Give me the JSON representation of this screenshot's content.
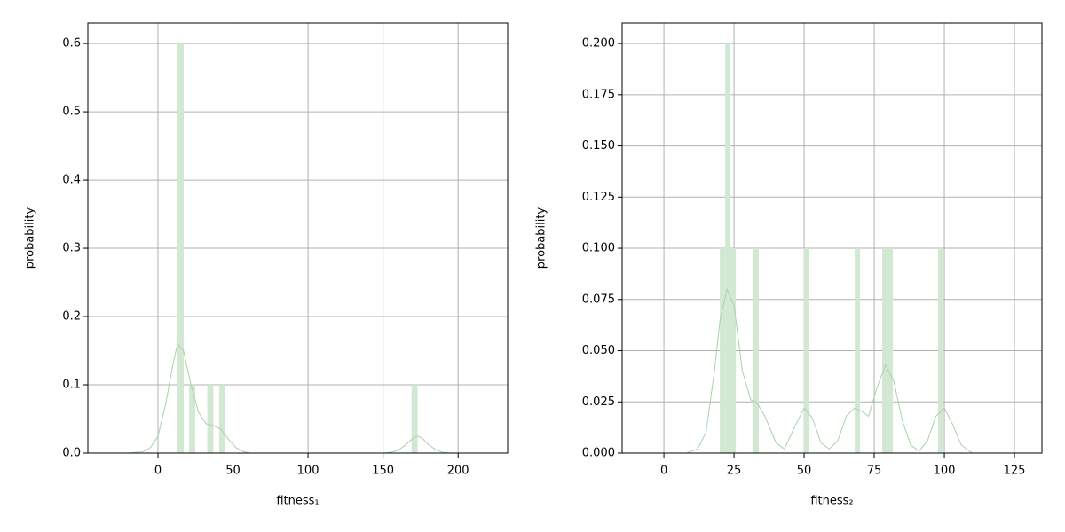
{
  "chart_data": [
    {
      "type": "histogram",
      "xlabel": "fitness₁",
      "ylabel": "probability",
      "xlim": [
        -46.7,
        233
      ],
      "ylim": [
        0,
        0.63
      ],
      "xticks": [
        0,
        50,
        100,
        150,
        200
      ],
      "yticks": [
        {
          "value": 0,
          "label": "0.0"
        },
        0.1,
        0.2,
        0.3,
        0.4,
        0.5,
        0.6
      ],
      "grid": true,
      "bars": {
        "x": [
          15.1,
          22.8,
          34.9,
          42.9,
          171
        ],
        "values": [
          0.6,
          0.1,
          0.1,
          0.1,
          0.1
        ],
        "width": 4.1,
        "color": "#d2e8d2"
      },
      "kde": {
        "x": [
          -20,
          -10,
          -5,
          0,
          5,
          10,
          13,
          17,
          22,
          27,
          32,
          37,
          42,
          47,
          52,
          57,
          62,
          70,
          90,
          120,
          150,
          155,
          160,
          165,
          170,
          173,
          176,
          180,
          185,
          190,
          195,
          200
        ],
        "values": [
          0,
          0.002,
          0.008,
          0.025,
          0.07,
          0.13,
          0.16,
          0.15,
          0.1,
          0.06,
          0.043,
          0.04,
          0.035,
          0.02,
          0.008,
          0.002,
          0,
          0,
          0,
          0,
          0,
          0.001,
          0.004,
          0.012,
          0.022,
          0.025,
          0.022,
          0.013,
          0.005,
          0.001,
          0,
          0
        ],
        "color": "#a9d2a9"
      }
    },
    {
      "type": "histogram",
      "xlabel": "fitness₂",
      "ylabel": "probability",
      "xlim": [
        -14.9,
        134.8
      ],
      "ylim": [
        0,
        0.21
      ],
      "xticks": [
        0,
        25,
        50,
        75,
        100,
        125
      ],
      "yticks": [
        {
          "value": 0,
          "label": "0.000"
        },
        {
          "value": 0.025,
          "label": "0.025"
        },
        {
          "value": 0.05,
          "label": "0.050"
        },
        {
          "value": 0.075,
          "label": "0.075"
        },
        {
          "value": 0.1,
          "label": "0.100"
        },
        {
          "value": 0.125,
          "label": "0.125"
        },
        {
          "value": 0.15,
          "label": "0.150"
        },
        {
          "value": 0.175,
          "label": "0.175"
        },
        {
          "value": 0.2,
          "label": "0.200"
        }
      ],
      "grid": true,
      "bars": {
        "x": [
          20.9,
          22.8,
          24.7,
          32.9,
          50.8,
          69.0,
          78.8,
          80.7,
          98.7
        ],
        "values": [
          0.1,
          0.2,
          0.1,
          0.1,
          0.1,
          0.1,
          0.1,
          0.1,
          0.1
        ],
        "width": 1.9,
        "color": "#d2e8d2"
      },
      "kde": {
        "x": [
          8,
          12,
          15,
          18,
          20,
          22.5,
          25,
          28,
          31,
          33,
          36,
          40,
          43,
          47,
          50,
          53,
          56,
          59,
          62,
          65,
          68,
          71,
          73,
          76,
          79,
          82,
          85,
          88,
          91,
          94,
          97,
          100,
          103,
          106,
          110
        ],
        "values": [
          0,
          0.002,
          0.01,
          0.04,
          0.065,
          0.08,
          0.072,
          0.04,
          0.026,
          0.025,
          0.018,
          0.005,
          0.002,
          0.014,
          0.022,
          0.017,
          0.005,
          0.002,
          0.006,
          0.018,
          0.022,
          0.02,
          0.018,
          0.032,
          0.043,
          0.035,
          0.016,
          0.004,
          0.001,
          0.006,
          0.018,
          0.022,
          0.014,
          0.004,
          0
        ],
        "color": "#a9d2a9"
      }
    }
  ]
}
